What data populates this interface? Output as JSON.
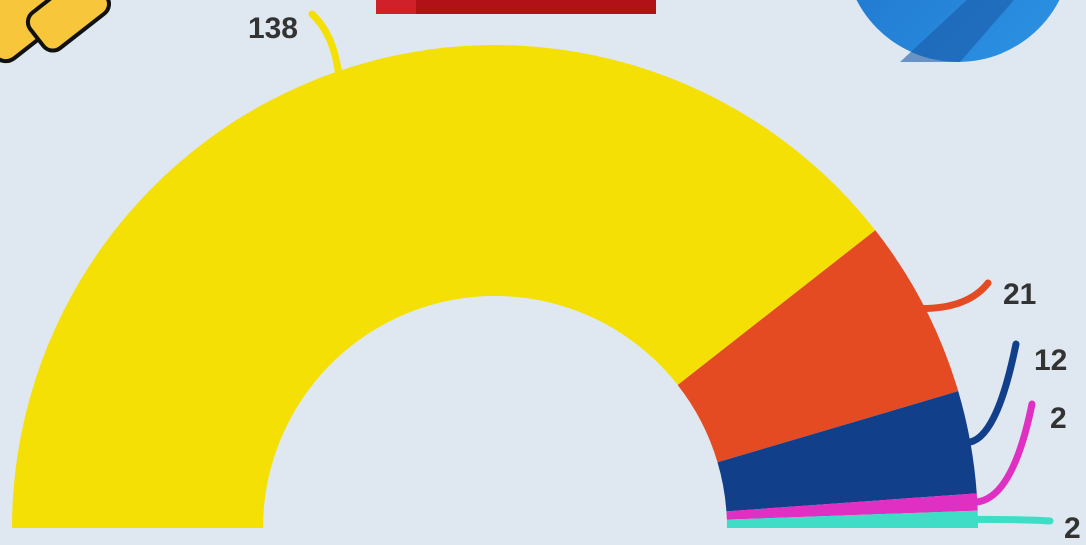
{
  "chart_data": {
    "type": "semi-donut",
    "values": [
      138,
      21,
      12,
      2,
      2
    ],
    "colors": [
      "#f4e004",
      "#e54b22",
      "#123f89",
      "#e02fc3",
      "#3fdcc6"
    ]
  }
}
